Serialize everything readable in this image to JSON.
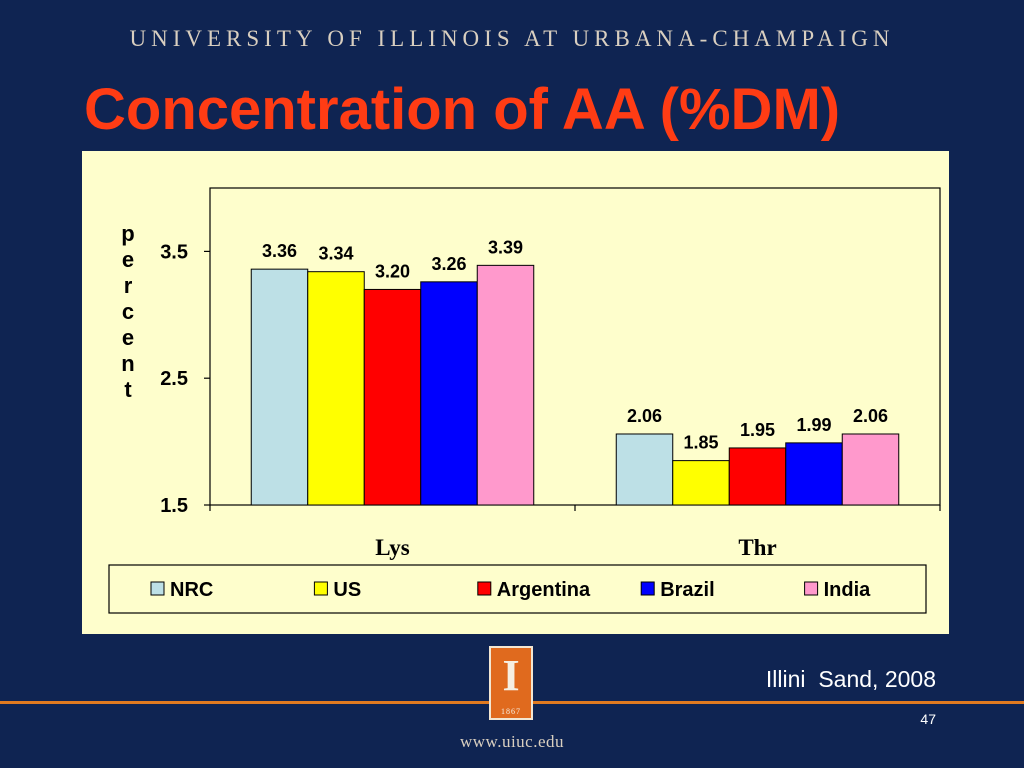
{
  "header": {
    "university": "UNIVERSITY OF ILLINOIS AT URBANA-CHAMPAIGN"
  },
  "slide": {
    "title": "Concentration of AA (%DM)",
    "credit": "Illini  Sand, 2008",
    "page_number": "47",
    "url": "www.uiuc.edu"
  },
  "seal": {
    "glyph": "I",
    "year": "1867"
  },
  "colors": {
    "background": "#0f2452",
    "accent": "#e07a20",
    "title": "#ff3c14",
    "chart_bg": "#fefecc"
  },
  "chart_data": {
    "type": "bar",
    "ylabel": "percent",
    "categories": [
      "Lys",
      "Thr"
    ],
    "yticks": [
      "3.5",
      "2.5",
      "1.5"
    ],
    "ytick_values": [
      3.5,
      2.5,
      1.5
    ],
    "ylim": [
      1.5,
      4.0
    ],
    "series": [
      {
        "name": "NRC",
        "color": "#bde0e6",
        "values": [
          3.36,
          2.06
        ],
        "labels": [
          "3.36",
          "2.06"
        ]
      },
      {
        "name": "US",
        "color": "#ffff00",
        "values": [
          3.34,
          1.85
        ],
        "labels": [
          "3.34",
          "1.85"
        ]
      },
      {
        "name": "Argentina",
        "color": "#ff0000",
        "values": [
          3.2,
          1.95
        ],
        "labels": [
          "3.20",
          "1.95"
        ]
      },
      {
        "name": "Brazil",
        "color": "#0000ff",
        "values": [
          3.26,
          1.99
        ],
        "labels": [
          "3.26",
          "1.99"
        ]
      },
      {
        "name": "India",
        "color": "#ff99cc",
        "values": [
          3.39,
          2.06
        ],
        "labels": [
          "3.39",
          "2.06"
        ]
      }
    ],
    "legend_position": "bottom",
    "grid": false
  }
}
